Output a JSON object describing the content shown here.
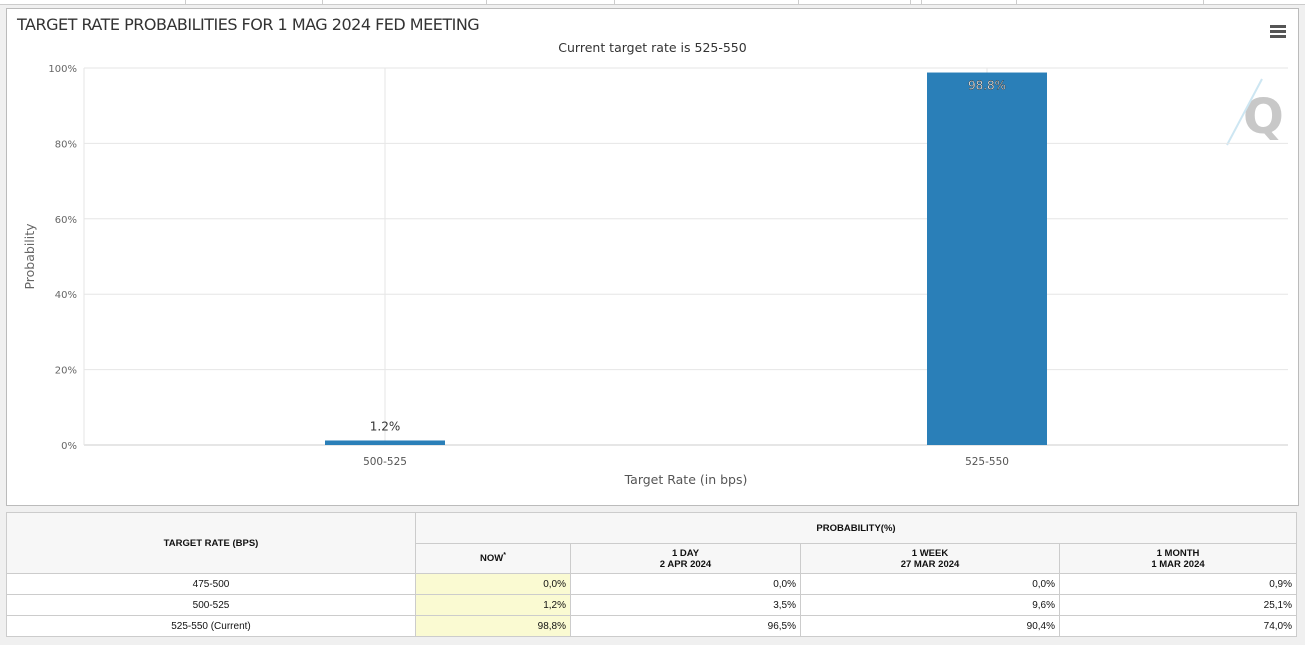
{
  "chart_data": {
    "type": "bar",
    "title": "TARGET RATE PROBABILITIES FOR 1 MAG 2024 FED MEETING",
    "subtitle": "Current target rate is 525-550",
    "categories": [
      "500-525",
      "525-550"
    ],
    "values": [
      1.2,
      98.8
    ],
    "data_labels": [
      "1.2%",
      "98.8%"
    ],
    "xlabel": "Target Rate (in bps)",
    "ylabel": "Probability",
    "ylim": [
      0,
      100
    ],
    "yticks": [
      "0%",
      "20%",
      "40%",
      "60%",
      "80%",
      "100%"
    ],
    "grid": true,
    "bar_color": "#2a7fb8"
  },
  "table": {
    "rate_header": "TARGET RATE (BPS)",
    "prob_header": "PROBABILITY(%)",
    "columns": [
      {
        "line1": "NOW",
        "sup": "*",
        "line2": ""
      },
      {
        "line1": "1 DAY",
        "line2": "2 APR 2024"
      },
      {
        "line1": "1 WEEK",
        "line2": "27 MAR 2024"
      },
      {
        "line1": "1 MONTH",
        "line2": "1 MAR 2024"
      }
    ],
    "rows": [
      {
        "rate": "475-500",
        "values": [
          "0,0%",
          "0,0%",
          "0,0%",
          "0,9%"
        ]
      },
      {
        "rate": "500-525",
        "values": [
          "1,2%",
          "3,5%",
          "9,6%",
          "25,1%"
        ]
      },
      {
        "rate": "525-550 (Current)",
        "values": [
          "98,8%",
          "96,5%",
          "90,4%",
          "74,0%"
        ]
      }
    ],
    "now_highlight": "#fafad2"
  },
  "icons": {
    "menu": "hamburger-icon",
    "logo": "quikstrike-q-logo"
  }
}
